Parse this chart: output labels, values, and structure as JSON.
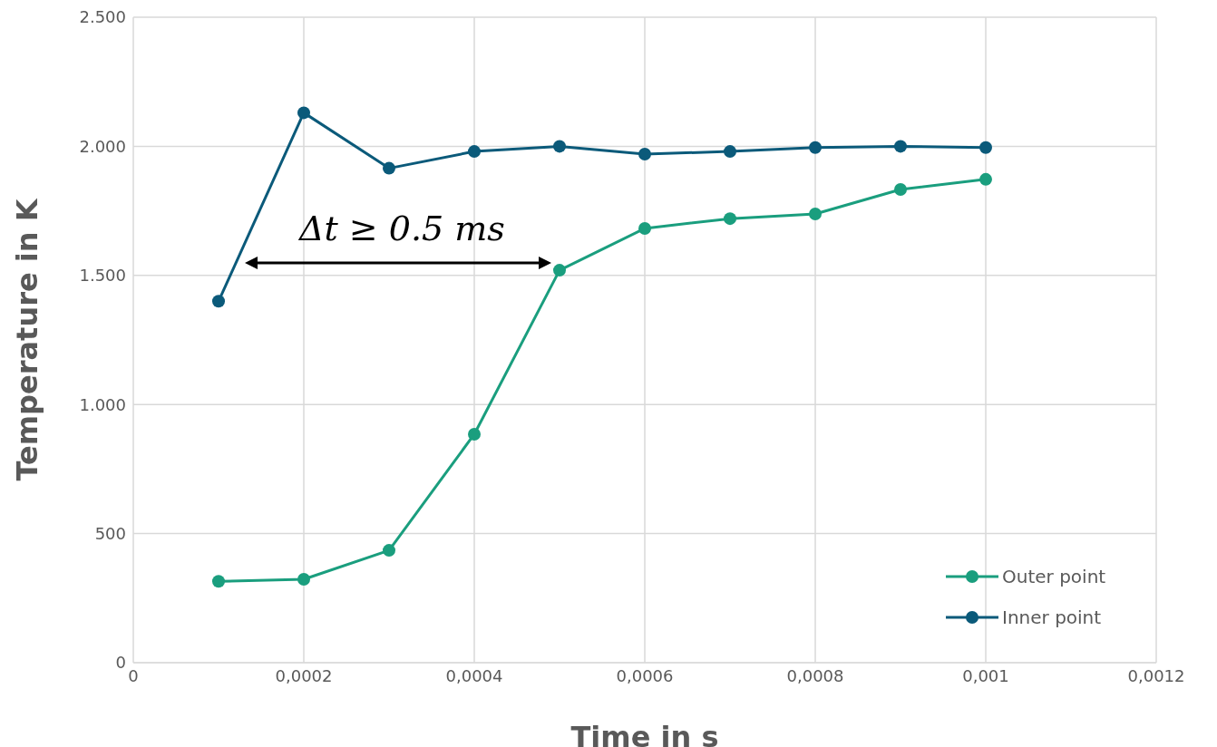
{
  "chart_data": {
    "type": "line",
    "xlabel": "Time in s",
    "ylabel": "Temperature in K",
    "x": [
      0.0001,
      0.0002,
      0.0003,
      0.0004,
      0.0005,
      0.0006,
      0.0007,
      0.0008,
      0.0009,
      0.001
    ],
    "series": [
      {
        "name": "Outer point",
        "color": "#1a9e7e",
        "values": [
          315,
          323,
          435,
          885,
          1520,
          1682,
          1720,
          1738,
          1833,
          1872
        ]
      },
      {
        "name": "Inner point",
        "color": "#0b5a7a",
        "values": [
          1400,
          2130,
          1915,
          1980,
          2000,
          1970,
          1980,
          1995,
          2000,
          1995
        ]
      }
    ],
    "xlim": [
      0,
      0.0012
    ],
    "xticks": [
      0,
      {
        "value": 0.0002,
        "label": "0,0002"
      },
      {
        "value": 0.0004,
        "label": "0,0004"
      },
      {
        "value": 0.0006,
        "label": "0,0006"
      },
      {
        "value": 0.0008,
        "label": "0,0008"
      },
      {
        "value": 0.001,
        "label": "0,001"
      },
      {
        "value": 0.0012,
        "label": "0,0012"
      }
    ],
    "ylim": [
      0,
      2500
    ],
    "yticks": [
      0,
      500,
      {
        "value": 1000,
        "label": "1.000"
      },
      {
        "value": 1500,
        "label": "1.500"
      },
      {
        "value": 2000,
        "label": "2.000"
      },
      {
        "value": 2500,
        "label": "2.500"
      }
    ],
    "annotations": [
      "Δt ≥ 0.5 ms"
    ],
    "grid": true,
    "legend": "bottom right",
    "marker": "circle",
    "line_style": "solid"
  }
}
